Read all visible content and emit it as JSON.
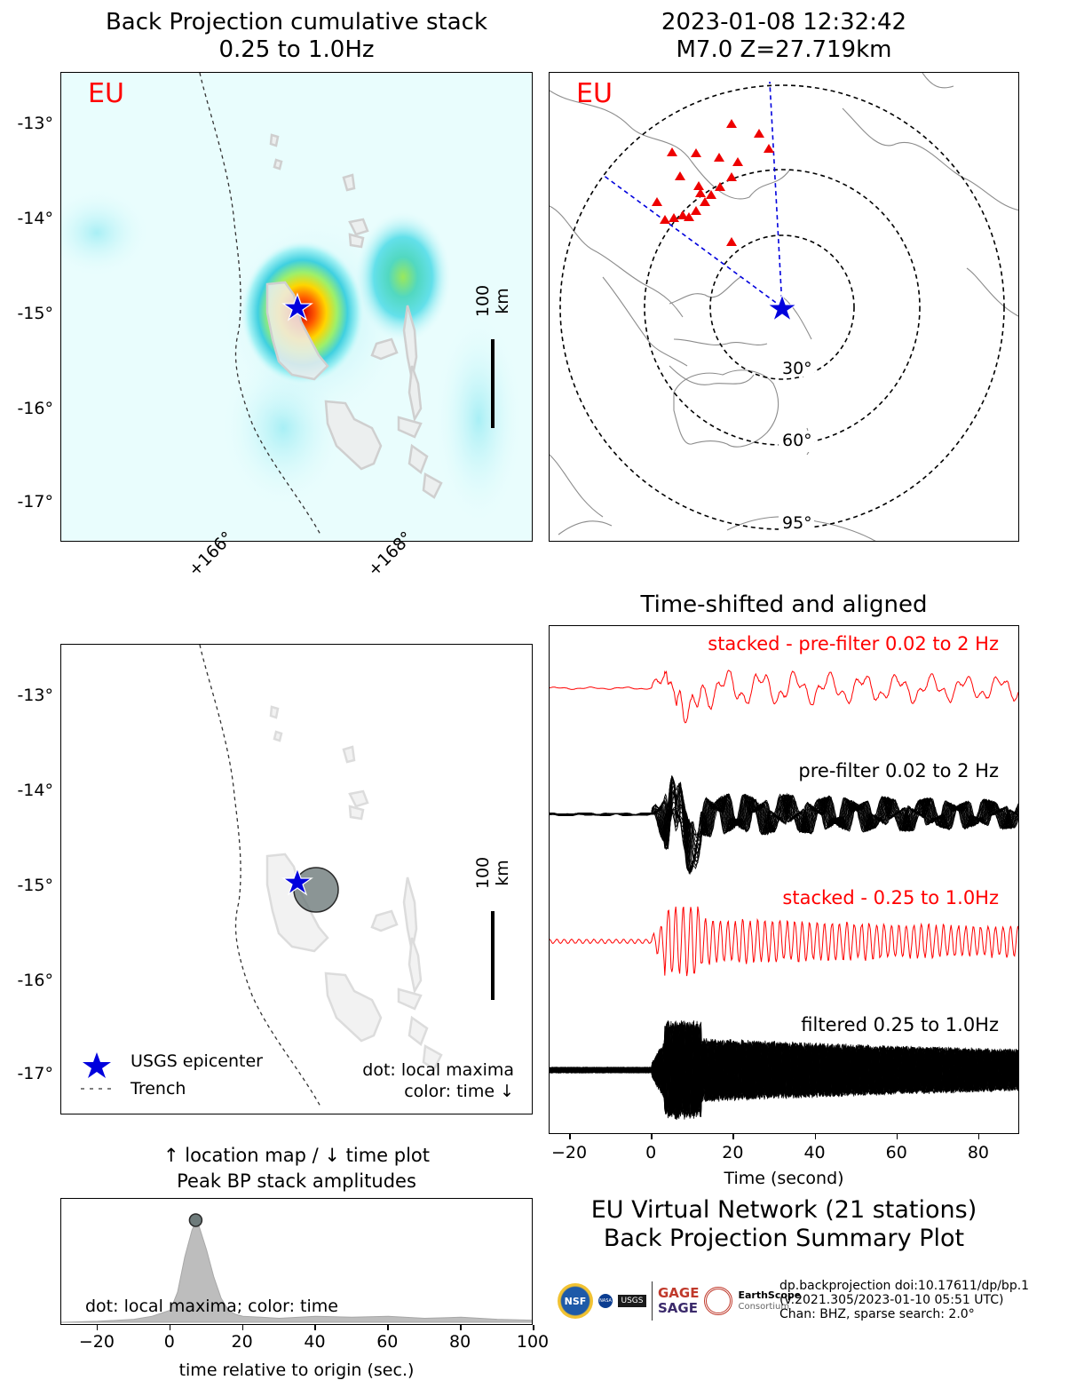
{
  "bp_map": {
    "title_line1": "Back Projection cumulative stack",
    "title_line2": "0.25 to 1.0Hz",
    "network_label": "EU",
    "lat_ticks": [
      "-13°",
      "-14°",
      "-15°",
      "-16°",
      "-17°"
    ],
    "lon_ticks": [
      "+166°",
      "+168°"
    ],
    "scale_label": "100 km"
  },
  "station_map": {
    "title_line1": "2023-01-08 12:32:42",
    "title_line2": "M7.0 Z=27.719km",
    "network_label": "EU",
    "ring_labels": [
      "30°",
      "60°",
      "95°"
    ]
  },
  "location_map": {
    "lat_ticks": [
      "-13°",
      "-14°",
      "-15°",
      "-16°",
      "-17°"
    ],
    "scale_label": "100 km",
    "legend_epicenter": "USGS epicenter",
    "legend_trench": "Trench",
    "note_line1": "dot: local maxima",
    "note_line2": "color: time ↓"
  },
  "peak_plot": {
    "title_line1": "↑ location map / ↓ time plot",
    "title_line2": "Peak BP stack amplitudes",
    "annotation": "dot: local maxima; color: time",
    "xlabel": "time relative to origin (sec.)",
    "x_ticks": [
      "−20",
      "0",
      "20",
      "40",
      "60",
      "80",
      "100"
    ]
  },
  "traces": {
    "title": "Time-shifted and aligned",
    "label_stacked_pre": "stacked - pre-filter 0.02 to 2 Hz",
    "label_pre": "pre-filter 0.02 to 2 Hz",
    "label_stacked_bp": "stacked - 0.25 to 1.0Hz",
    "label_filtered": "filtered 0.25 to 1.0Hz",
    "xlabel": "Time (second)",
    "x_ticks": [
      "−20",
      "0",
      "20",
      "40",
      "60",
      "80"
    ]
  },
  "summary": {
    "line1": "EU Virtual Network (21 stations)",
    "line2": "Back Projection Summary Plot",
    "meta_line1": "dp.backprojection doi:10.17611/dp/bp.1",
    "meta_line2": "(v.2021.305/2023-01-10 05:51 UTC)",
    "meta_line3": "Chan: BHZ, sparse search: 2.0°",
    "logo_nsf": "NSF",
    "logo_nasa": "NASA",
    "logo_usgs": "USGS",
    "logo_gage": "GAGE",
    "logo_sage": "SAGE",
    "logo_earthscope": "EarthScope",
    "logo_consortium": "Consortium"
  },
  "chart_data": [
    {
      "type": "heatmap",
      "title": "Back Projection cumulative stack 0.25 to 1.0Hz",
      "xlabel": "",
      "ylabel": "",
      "xlim": [
        164.3,
        169.5
      ],
      "ylim": [
        -17.45,
        -12.55
      ],
      "epicenter": {
        "lon": 166.85,
        "lat": -14.97
      },
      "scale_bar_km": 100,
      "hotspots": [
        {
          "lon": 166.97,
          "lat": -15.0,
          "amplitude": 1.0
        },
        {
          "lon": 168.0,
          "lat": -14.6,
          "amplitude": 0.55
        }
      ]
    },
    {
      "type": "scatter",
      "title": "2023-01-08 12:32:42 M7.0 Z=27.719km",
      "ring_distances_deg": [
        30,
        60,
        95
      ],
      "epicenter": {
        "lon": 166.85,
        "lat": -14.97
      },
      "station_count": 21
    },
    {
      "type": "scatter",
      "xlim": [
        164.3,
        169.5
      ],
      "ylim": [
        -17.45,
        -12.55
      ],
      "local_maxima": [
        {
          "lon": 167.05,
          "lat": -15.06
        }
      ],
      "epicenter": {
        "lon": 166.85,
        "lat": -14.97
      },
      "legend": [
        "USGS epicenter",
        "Trench"
      ]
    },
    {
      "type": "area",
      "title": "↑ location map / ↓ time plot Peak BP stack amplitudes",
      "xlabel": "time relative to origin (sec.)",
      "xlim": [
        -30,
        100
      ],
      "x": [
        -30,
        -20,
        -10,
        -5,
        0,
        2,
        4,
        6,
        7,
        8,
        10,
        12,
        14,
        16,
        18,
        20,
        25,
        30,
        40,
        50,
        60,
        70,
        80,
        90,
        100
      ],
      "values": [
        0.0,
        0.01,
        0.03,
        0.06,
        0.12,
        0.3,
        0.65,
        0.92,
        1.0,
        0.95,
        0.72,
        0.45,
        0.24,
        0.12,
        0.08,
        0.06,
        0.05,
        0.04,
        0.06,
        0.05,
        0.06,
        0.04,
        0.05,
        0.03,
        0.02
      ],
      "local_maxima": [
        {
          "x": 7,
          "y": 1.0
        }
      ]
    },
    {
      "type": "line",
      "title": "Time-shifted and aligned",
      "xlabel": "Time (second)",
      "xlim": [
        -25,
        90
      ],
      "series": [
        {
          "name": "stacked - pre-filter 0.02 to 2 Hz"
        },
        {
          "name": "pre-filter 0.02 to 2 Hz"
        },
        {
          "name": "stacked - 0.25 to 1.0Hz"
        },
        {
          "name": "filtered 0.25 to 1.0Hz"
        }
      ]
    }
  ]
}
